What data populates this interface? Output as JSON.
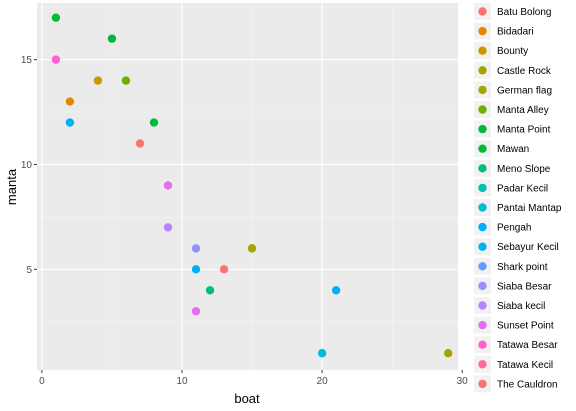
{
  "chart_data": {
    "type": "scatter",
    "xlabel": "boat",
    "ylabel": "manta",
    "xlim": [
      -0.35,
      29.7
    ],
    "ylim": [
      0.2,
      17.7
    ],
    "x_ticks": [
      0,
      10,
      20,
      30
    ],
    "y_ticks": [
      5,
      10,
      15
    ],
    "grid": true,
    "legend_position": "right",
    "series": [
      {
        "name": "Batu Bolong",
        "color": "#F8766D",
        "points": [
          [
            7,
            11
          ]
        ]
      },
      {
        "name": "Bidadari",
        "color": "#E58700",
        "points": [
          [
            2,
            13
          ]
        ]
      },
      {
        "name": "Bounty",
        "color": "#C99800",
        "points": [
          [
            4,
            14
          ]
        ]
      },
      {
        "name": "Castle Rock",
        "color": "#A3A500",
        "points": [
          [
            29,
            1
          ]
        ]
      },
      {
        "name": "German flag",
        "color": "#A3A500",
        "points": [
          [
            15,
            6
          ]
        ]
      },
      {
        "name": "Manta Alley",
        "color": "#6BB100",
        "points": [
          [
            6,
            14
          ]
        ]
      },
      {
        "name": "Manta Point",
        "color": "#00BA38",
        "points": [
          [
            5,
            16
          ],
          [
            8,
            12
          ]
        ]
      },
      {
        "name": "Mawan",
        "color": "#00BA38",
        "points": [
          [
            1,
            17
          ]
        ]
      },
      {
        "name": "Meno Slope",
        "color": "#00BF7D",
        "points": [
          [
            12,
            4
          ]
        ]
      },
      {
        "name": "Padar Kecil",
        "color": "#00C0AF",
        "points": []
      },
      {
        "name": "Pantai Mantap",
        "color": "#00BCD8",
        "points": [
          [
            20,
            1
          ]
        ]
      },
      {
        "name": "Pengah",
        "color": "#00B0F6",
        "points": [
          [
            2,
            12
          ]
        ]
      },
      {
        "name": "Sebayur Kecil",
        "color": "#00B0F6",
        "points": [
          [
            21,
            4
          ],
          [
            11,
            5
          ]
        ]
      },
      {
        "name": "Shark point",
        "color": "#619CFF",
        "points": []
      },
      {
        "name": "Siaba Besar",
        "color": "#9590FF",
        "points": [
          [
            11,
            6
          ]
        ]
      },
      {
        "name": "Siaba kecil",
        "color": "#B983FF",
        "points": [
          [
            9,
            7
          ]
        ]
      },
      {
        "name": "Sunset Point",
        "color": "#E76BF3",
        "points": [
          [
            11,
            3
          ],
          [
            9,
            9
          ]
        ]
      },
      {
        "name": "Tatawa Besar",
        "color": "#FD61D1",
        "points": [
          [
            1,
            15
          ]
        ]
      },
      {
        "name": "Tatawa Kecil",
        "color": "#FF67A4",
        "points": []
      },
      {
        "name": "The Cauldron",
        "color": "#F8766D",
        "points": [
          [
            13,
            5
          ]
        ]
      }
    ]
  }
}
